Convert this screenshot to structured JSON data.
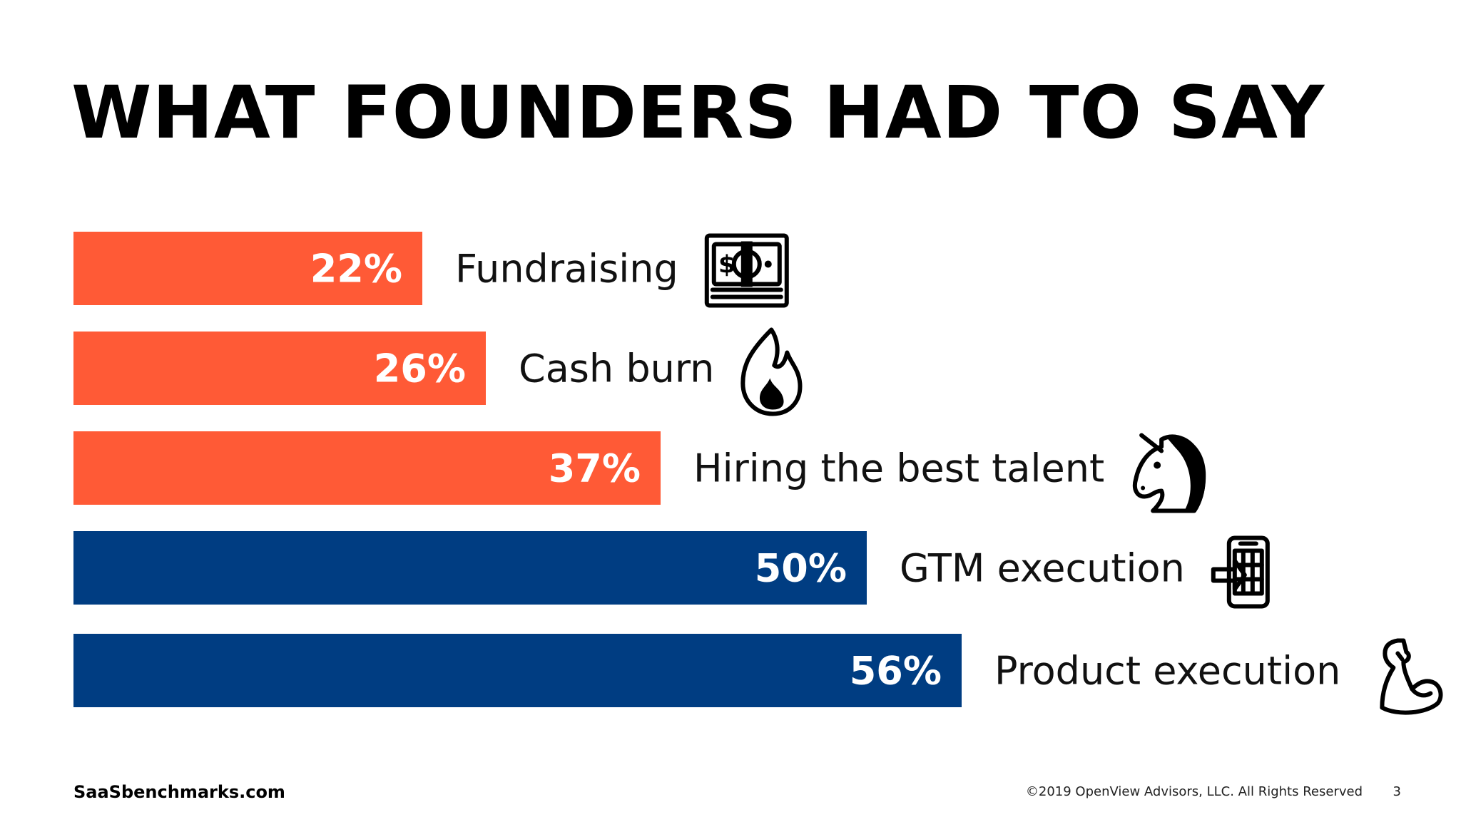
{
  "slide": {
    "title": "WHAT FOUNDERS HAD TO SAY",
    "footer_left": "SaaSbenchmarks.com",
    "footer_right": "©2019 OpenView Advisors, LLC. All Rights Reserved",
    "page_number": "3"
  },
  "chart_data": {
    "type": "bar",
    "orientation": "horizontal",
    "categories": [
      "Fundraising",
      "Cash burn",
      "Hiring the best talent",
      "GTM execution",
      "Product execution"
    ],
    "values": [
      22,
      26,
      37,
      50,
      56
    ],
    "value_labels": [
      "22%",
      "26%",
      "37%",
      "50%",
      "56%"
    ],
    "bar_colors": [
      "#FF5A36",
      "#FF5A36",
      "#FF5A36",
      "#003D82",
      "#003D82"
    ],
    "icons": [
      "money-icon",
      "fire-icon",
      "unicorn-icon",
      "mobile-phone-icon",
      "flexed-biceps-icon"
    ],
    "xlim": [
      0,
      56
    ]
  }
}
